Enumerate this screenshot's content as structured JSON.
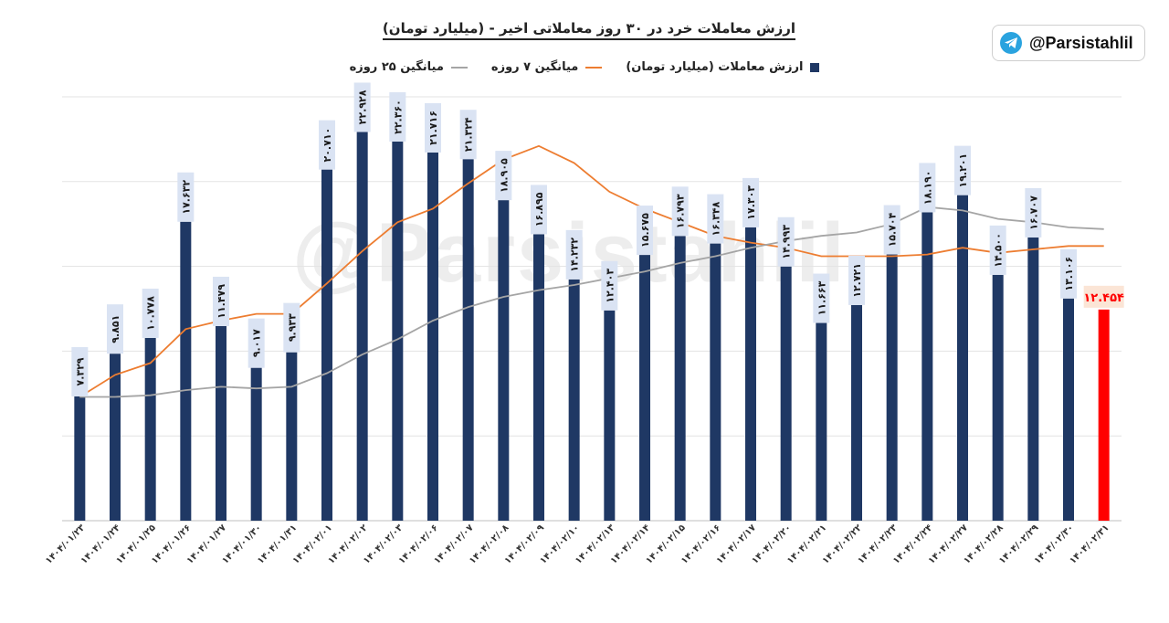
{
  "badge": {
    "handle": "@Parsistahlil",
    "icon": "telegram-icon"
  },
  "watermark": "@Parsistahlil",
  "chart_data": {
    "type": "bar",
    "title": "ارزش معاملات خرد در ۳۰ روز معاملاتی اخیر - (میلیارد تومان)",
    "categories": [
      "۱۴۰۴/۰۱/۲۳",
      "۱۴۰۴/۰۱/۲۴",
      "۱۴۰۴/۰۱/۲۵",
      "۱۴۰۴/۰۱/۲۶",
      "۱۴۰۴/۰۱/۲۷",
      "۱۴۰۴/۰۱/۳۰",
      "۱۴۰۴/۰۱/۳۱",
      "۱۴۰۴/۰۲/۰۱",
      "۱۴۰۴/۰۲/۰۲",
      "۱۴۰۴/۰۲/۰۳",
      "۱۴۰۴/۰۲/۰۶",
      "۱۴۰۴/۰۲/۰۷",
      "۱۴۰۴/۰۲/۰۸",
      "۱۴۰۴/۰۲/۰۹",
      "۱۴۰۴/۰۲/۱۰",
      "۱۴۰۴/۰۲/۱۳",
      "۱۴۰۴/۰۲/۱۴",
      "۱۴۰۴/۰۲/۱۵",
      "۱۴۰۴/۰۲/۱۶",
      "۱۴۰۴/۰۲/۱۷",
      "۱۴۰۴/۰۲/۲۰",
      "۱۴۰۴/۰۲/۲۱",
      "۱۴۰۴/۰۲/۲۲",
      "۱۴۰۴/۰۲/۲۳",
      "۱۴۰۴/۰۲/۲۴",
      "۱۴۰۴/۰۲/۲۷",
      "۱۴۰۴/۰۲/۲۸",
      "۱۴۰۴/۰۲/۲۹",
      "۱۴۰۴/۰۲/۳۰",
      "۱۴۰۴/۰۲/۳۱"
    ],
    "series": [
      {
        "name": "ارزش معاملات (میلیارد تومان)",
        "color": "#1f3864",
        "highlight_last": "#ff0000",
        "values": [
          7.329,
          9.851,
          10.778,
          17.632,
          11.479,
          9.017,
          9.933,
          20.71,
          22.928,
          22.36,
          21.716,
          21.324,
          18.905,
          16.895,
          14.232,
          12.403,
          15.675,
          16.793,
          16.348,
          17.303,
          14.993,
          11.663,
          12.721,
          15.704,
          18.19,
          19.201,
          14.5,
          16.707,
          13.106,
          12.454
        ],
        "labels": [
          "۷.۳۲۹",
          "۹.۸۵۱",
          "۱۰.۷۷۸",
          "۱۷.۶۳۲",
          "۱۱.۴۷۹",
          "۹.۰۱۷",
          "۹.۹۳۳",
          "۲۰.۷۱۰",
          "۲۲.۹۲۸",
          "۲۲.۳۶۰",
          "۲۱.۷۱۶",
          "۲۱.۳۲۴",
          "۱۸.۹۰۵",
          "۱۶.۸۹۵",
          "۱۴.۲۳۲",
          "۱۲.۴۰۳",
          "۱۵.۶۷۵",
          "۱۶.۷۹۳",
          "۱۶.۳۴۸",
          "۱۷.۳۰۳",
          "۱۴.۹۹۳",
          "۱۱.۶۶۳",
          "۱۲.۷۲۱",
          "۱۵.۷۰۴",
          "۱۸.۱۹۰",
          "۱۹.۲۰۱",
          "۱۴.۵۰۰",
          "۱۶.۷۰۷",
          "۱۳.۱۰۶",
          "۱۲.۴۵۴"
        ]
      },
      {
        "name": "میانگین ۷ روزه",
        "color": "#ed7d31",
        "values": [
          7.3,
          8.6,
          9.3,
          11.3,
          11.8,
          12.2,
          12.2,
          14.0,
          15.9,
          17.6,
          18.4,
          19.9,
          21.3,
          22.1,
          21.1,
          19.4,
          18.4,
          17.6,
          16.8,
          16.4,
          16.1,
          15.6,
          15.6,
          15.6,
          15.7,
          16.1,
          15.8,
          16.0,
          16.2,
          16.2
        ]
      },
      {
        "name": "میانگین ۲۵ روزه",
        "color": "#a5a5a5",
        "values": [
          7.3,
          7.3,
          7.4,
          7.7,
          7.9,
          7.8,
          7.9,
          8.7,
          9.8,
          10.7,
          11.8,
          12.6,
          13.2,
          13.6,
          13.9,
          14.3,
          14.7,
          15.2,
          15.6,
          16.1,
          16.5,
          16.8,
          17.0,
          17.5,
          18.5,
          18.3,
          17.8,
          17.6,
          17.3,
          17.2
        ]
      }
    ],
    "ylim": [
      0,
      25
    ],
    "grid": true,
    "legend": "top-center"
  }
}
